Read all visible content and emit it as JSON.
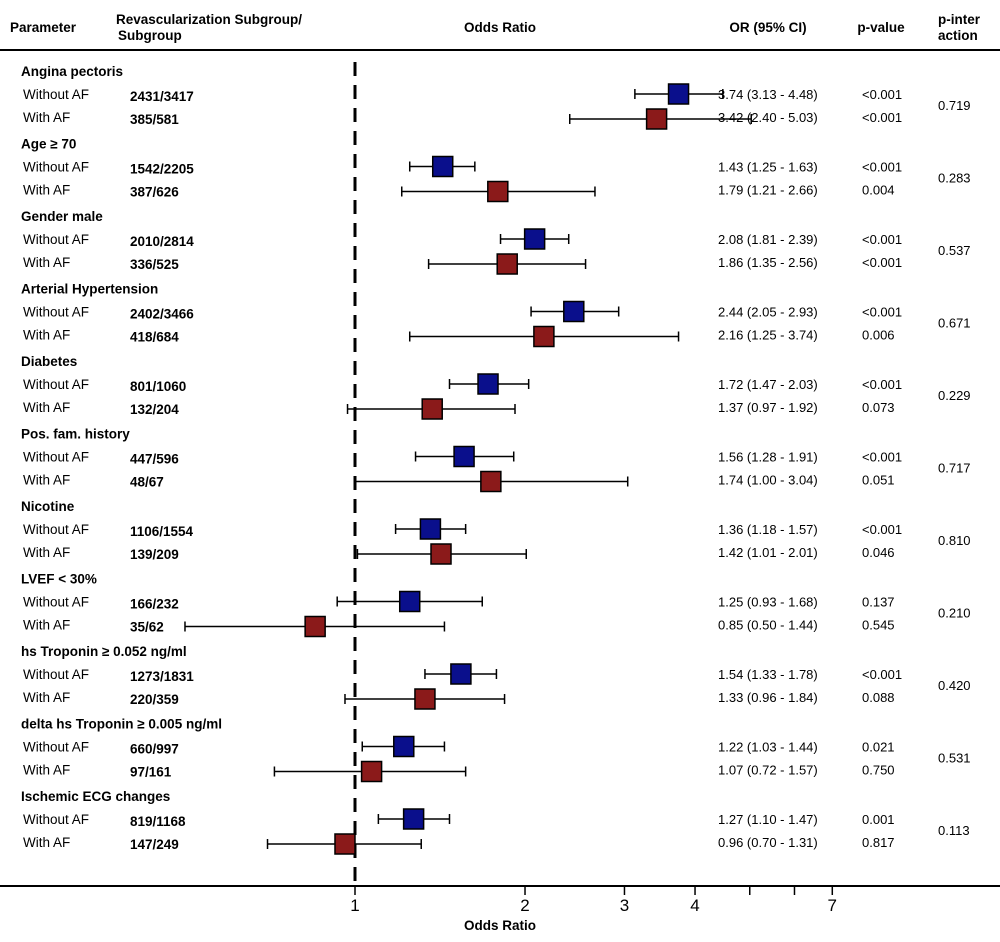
{
  "headers": {
    "parameter": "Parameter",
    "subgroup_line1": "Revascularization Subgroup/",
    "subgroup_line2": "Subgroup",
    "odds_ratio": "Odds Ratio",
    "or_ci": "OR (95% CI)",
    "p_value": "p-value",
    "p_inter_line1": "p-inter",
    "p_inter_line2": "action"
  },
  "colors": {
    "without_af": "#0a0f8c",
    "with_af": "#8b1a1a",
    "line": "#000000"
  },
  "chart_data": {
    "type": "forest",
    "scale": "log",
    "xlabel": "Odds Ratio",
    "reference_line": 1,
    "ticks": [
      1,
      2,
      3,
      4,
      5,
      6,
      7
    ],
    "tick_labels": [
      "1",
      "2",
      "3",
      "4",
      "",
      "",
      "7"
    ],
    "series": [
      {
        "name": "Without AF",
        "color": "#0a0f8c"
      },
      {
        "name": "With AF",
        "color": "#8b1a1a"
      }
    ],
    "groups": [
      {
        "name": "Angina pectoris",
        "p_interaction": "0.719",
        "rows": [
          {
            "label": "Without AF",
            "count": "2431/3417",
            "or": 3.74,
            "lo": 3.13,
            "hi": 4.48,
            "or_text": "3.74 (3.13 - 4.48)",
            "p": "<0.001"
          },
          {
            "label": "With AF",
            "count": "385/581",
            "or": 3.42,
            "lo": 2.4,
            "hi": 5.03,
            "or_text": "3.42 (2.40 - 5.03)",
            "p": "<0.001"
          }
        ]
      },
      {
        "name": "Age ≥ 70",
        "p_interaction": "0.283",
        "rows": [
          {
            "label": "Without AF",
            "count": "1542/2205",
            "or": 1.43,
            "lo": 1.25,
            "hi": 1.63,
            "or_text": "1.43 (1.25 - 1.63)",
            "p": "<0.001"
          },
          {
            "label": "With AF",
            "count": "387/626",
            "or": 1.79,
            "lo": 1.21,
            "hi": 2.66,
            "or_text": "1.79 (1.21 - 2.66)",
            "p": "0.004"
          }
        ]
      },
      {
        "name": "Gender male",
        "p_interaction": "0.537",
        "rows": [
          {
            "label": "Without AF",
            "count": "2010/2814",
            "or": 2.08,
            "lo": 1.81,
            "hi": 2.39,
            "or_text": "2.08 (1.81 - 2.39)",
            "p": "<0.001"
          },
          {
            "label": "With AF",
            "count": "336/525",
            "or": 1.86,
            "lo": 1.35,
            "hi": 2.56,
            "or_text": "1.86 (1.35 - 2.56)",
            "p": "<0.001"
          }
        ]
      },
      {
        "name": "Arterial Hypertension",
        "p_interaction": "0.671",
        "rows": [
          {
            "label": "Without AF",
            "count": "2402/3466",
            "or": 2.44,
            "lo": 2.05,
            "hi": 2.93,
            "or_text": "2.44 (2.05 - 2.93)",
            "p": "<0.001"
          },
          {
            "label": "With AF",
            "count": "418/684",
            "or": 2.16,
            "lo": 1.25,
            "hi": 3.74,
            "or_text": "2.16 (1.25 - 3.74)",
            "p": "0.006"
          }
        ]
      },
      {
        "name": "Diabetes",
        "p_interaction": "0.229",
        "rows": [
          {
            "label": "Without AF",
            "count": "801/1060",
            "or": 1.72,
            "lo": 1.47,
            "hi": 2.03,
            "or_text": "1.72 (1.47 - 2.03)",
            "p": "<0.001"
          },
          {
            "label": "With AF",
            "count": "132/204",
            "or": 1.37,
            "lo": 0.97,
            "hi": 1.92,
            "or_text": "1.37 (0.97 - 1.92)",
            "p": "0.073"
          }
        ]
      },
      {
        "name": "Pos. fam. history",
        "p_interaction": "0.717",
        "rows": [
          {
            "label": "Without AF",
            "count": "447/596",
            "or": 1.56,
            "lo": 1.28,
            "hi": 1.91,
            "or_text": "1.56 (1.28 - 1.91)",
            "p": "<0.001"
          },
          {
            "label": "With AF",
            "count": "48/67",
            "or": 1.74,
            "lo": 1.0,
            "hi": 3.04,
            "or_text": "1.74 (1.00 - 3.04)",
            "p": "0.051"
          }
        ]
      },
      {
        "name": "Nicotine",
        "p_interaction": "0.810",
        "rows": [
          {
            "label": "Without AF",
            "count": "1106/1554",
            "or": 1.36,
            "lo": 1.18,
            "hi": 1.57,
            "or_text": "1.36 (1.18 - 1.57)",
            "p": "<0.001"
          },
          {
            "label": "With AF",
            "count": "139/209",
            "or": 1.42,
            "lo": 1.01,
            "hi": 2.01,
            "or_text": "1.42 (1.01 - 2.01)",
            "p": "0.046"
          }
        ]
      },
      {
        "name": "LVEF < 30%",
        "p_interaction": "0.210",
        "rows": [
          {
            "label": "Without AF",
            "count": "166/232",
            "or": 1.25,
            "lo": 0.93,
            "hi": 1.68,
            "or_text": "1.25 (0.93 - 1.68)",
            "p": "0.137"
          },
          {
            "label": "With AF",
            "count": "35/62",
            "or": 0.85,
            "lo": 0.5,
            "hi": 1.44,
            "or_text": "0.85 (0.50 - 1.44)",
            "p": "0.545"
          }
        ]
      },
      {
        "name": "hs Troponin ≥ 0.052 ng/ml",
        "p_interaction": "0.420",
        "rows": [
          {
            "label": "Without AF",
            "count": "1273/1831",
            "or": 1.54,
            "lo": 1.33,
            "hi": 1.78,
            "or_text": "1.54 (1.33 - 1.78)",
            "p": "<0.001"
          },
          {
            "label": "With AF",
            "count": "220/359",
            "or": 1.33,
            "lo": 0.96,
            "hi": 1.84,
            "or_text": "1.33 (0.96 - 1.84)",
            "p": "0.088"
          }
        ]
      },
      {
        "name": "delta hs Troponin ≥ 0.005 ng/ml",
        "p_interaction": "0.531",
        "rows": [
          {
            "label": "Without AF",
            "count": "660/997",
            "or": 1.22,
            "lo": 1.03,
            "hi": 1.44,
            "or_text": "1.22 (1.03 - 1.44)",
            "p": "0.021"
          },
          {
            "label": "With AF",
            "count": "97/161",
            "or": 1.07,
            "lo": 0.72,
            "hi": 1.57,
            "or_text": "1.07 (0.72 - 1.57)",
            "p": "0.750"
          }
        ]
      },
      {
        "name": "Ischemic ECG changes",
        "p_interaction": "0.113",
        "rows": [
          {
            "label": "Without AF",
            "count": "819/1168",
            "or": 1.27,
            "lo": 1.1,
            "hi": 1.47,
            "or_text": "1.27 (1.10 - 1.47)",
            "p": "0.001"
          },
          {
            "label": "With AF",
            "count": "147/249",
            "or": 0.96,
            "lo": 0.7,
            "hi": 1.31,
            "or_text": "0.96 (0.70 - 1.31)",
            "p": "0.817"
          }
        ]
      }
    ]
  }
}
